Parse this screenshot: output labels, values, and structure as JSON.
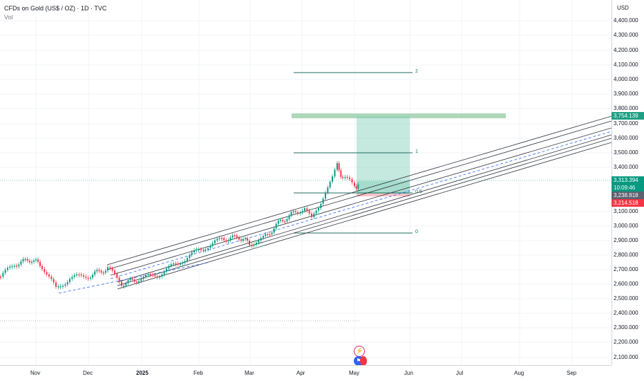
{
  "header": {
    "symbol": "CFDs on Gold (US$ / OZ) · 1D · TVC",
    "indicator": "Vol"
  },
  "price_axis": {
    "currency": "USD",
    "ticks": [
      "4,400.000",
      "4,300.000",
      "4,200.000",
      "4,100.000",
      "4,000.000",
      "3,900.000",
      "3,800.000",
      "3,700.000",
      "3,600.000",
      "3,500.000",
      "3,400.000",
      "3,100.000",
      "3,000.000",
      "2,900.000",
      "2,800.000",
      "2,700.000",
      "2,600.000",
      "2,500.000",
      "2,400.000",
      "2,300.000",
      "2,200.000",
      "2,100.000"
    ]
  },
  "badges": {
    "target": "3,754.139",
    "current_price": "3,313.394",
    "countdown": "10:09:46",
    "entry": "3,238.818",
    "stop": "3,214.518"
  },
  "fib_labels": [
    "2",
    "1",
    "0.5",
    "0"
  ],
  "time_axis": {
    "labels": [
      "Nov",
      "Dec",
      "2025",
      "Feb",
      "Mar",
      "Apr",
      "May",
      "Jun",
      "Jul",
      "Aug",
      "Sep"
    ]
  },
  "events": {
    "icon_a": "lightning-icon",
    "icon_b": "flag-icon"
  },
  "colors": {
    "up": "#089981",
    "down": "#f23645",
    "channel": "#2a2e39",
    "midline": "#2962ff",
    "target_zone": "#8bc79b",
    "profit_fill": "#7fcfb9",
    "fib": "#1e6b5c"
  }
}
